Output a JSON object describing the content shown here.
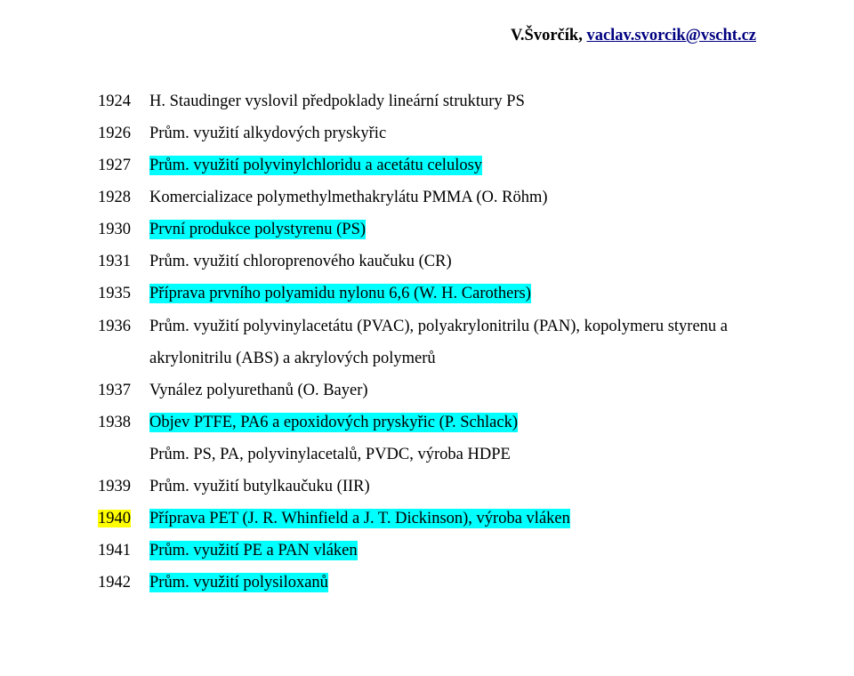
{
  "header": {
    "name": "V.Švorčík, ",
    "email": "vaclav.svorcik@vscht.cz"
  },
  "colors": {
    "header_email": "#000080",
    "highlight_bg": "#00ffff",
    "highlight_bg_yellow": "#ffff00",
    "text": "#000000"
  },
  "rows": [
    {
      "year": "1924",
      "parts": [
        {
          "text": "H. Staudinger vyslovil předpoklady lineární struktury PS",
          "hl": false
        }
      ]
    },
    {
      "year": "1926",
      "parts": [
        {
          "text": "Prům. využití alkydových pryskyřic",
          "hl": false
        }
      ]
    },
    {
      "year": "1927",
      "parts": [
        {
          "text": "Prům. využití polyvinylchloridu a acetátu celulosy",
          "hl": "cyan"
        }
      ]
    },
    {
      "year": "1928",
      "parts": [
        {
          "text": "Komercializace polymethylmethakrylátu PMMA (O. Röhm)",
          "hl": false
        }
      ]
    },
    {
      "year": "1930",
      "parts": [
        {
          "text": "První produkce polystyrenu (PS)",
          "hl": "cyan"
        }
      ]
    },
    {
      "year": "1931",
      "parts": [
        {
          "text": "Prům. využití chloroprenového kaučuku (CR)",
          "hl": false
        }
      ]
    },
    {
      "year": "1935",
      "parts": [
        {
          "text": "Příprava prvního polyamidu nylonu 6,6 (W. H. Carothers)",
          "hl": "cyan"
        }
      ]
    },
    {
      "year": "1936",
      "parts": [
        {
          "text": "Prům. využití polyvinylacetátu (PVAC), polyakrylonitrilu (PAN), kopolymeru styrenu a akrylonitrilu (ABS) a akrylových polymerů",
          "hl": false
        }
      ]
    },
    {
      "year": "1937",
      "parts": [
        {
          "text": "Vynález polyurethanů (O. Bayer)",
          "hl": false
        }
      ]
    },
    {
      "year": "1938",
      "parts": [
        {
          "text": "Objev PTFE, PA6 a epoxidových pryskyřic (P. Schlack)",
          "hl": "cyan"
        }
      ]
    },
    {
      "year": "",
      "parts": [
        {
          "text": "Prům. PS, PA, polyvinylacetalů, PVDC, výroba HDPE",
          "hl": false
        }
      ],
      "indent": true
    },
    {
      "year": "1939",
      "parts": [
        {
          "text": "Prům. využití butylkaučuku (IIR)",
          "hl": false
        }
      ]
    },
    {
      "year": "1940",
      "year_hl": "yellow",
      "parts": [
        {
          "text": "Příprava PET (J. R. Whinfield a J. T. Dickinson), výroba vláken",
          "hl": "cyan"
        }
      ]
    },
    {
      "year": "1941",
      "parts": [
        {
          "text": "Prům. využití PE a PAN vláken",
          "hl": "cyan"
        }
      ]
    },
    {
      "year": "1942",
      "parts": [
        {
          "text": "Prům. využití polysiloxanů",
          "hl": "cyan"
        }
      ]
    }
  ]
}
